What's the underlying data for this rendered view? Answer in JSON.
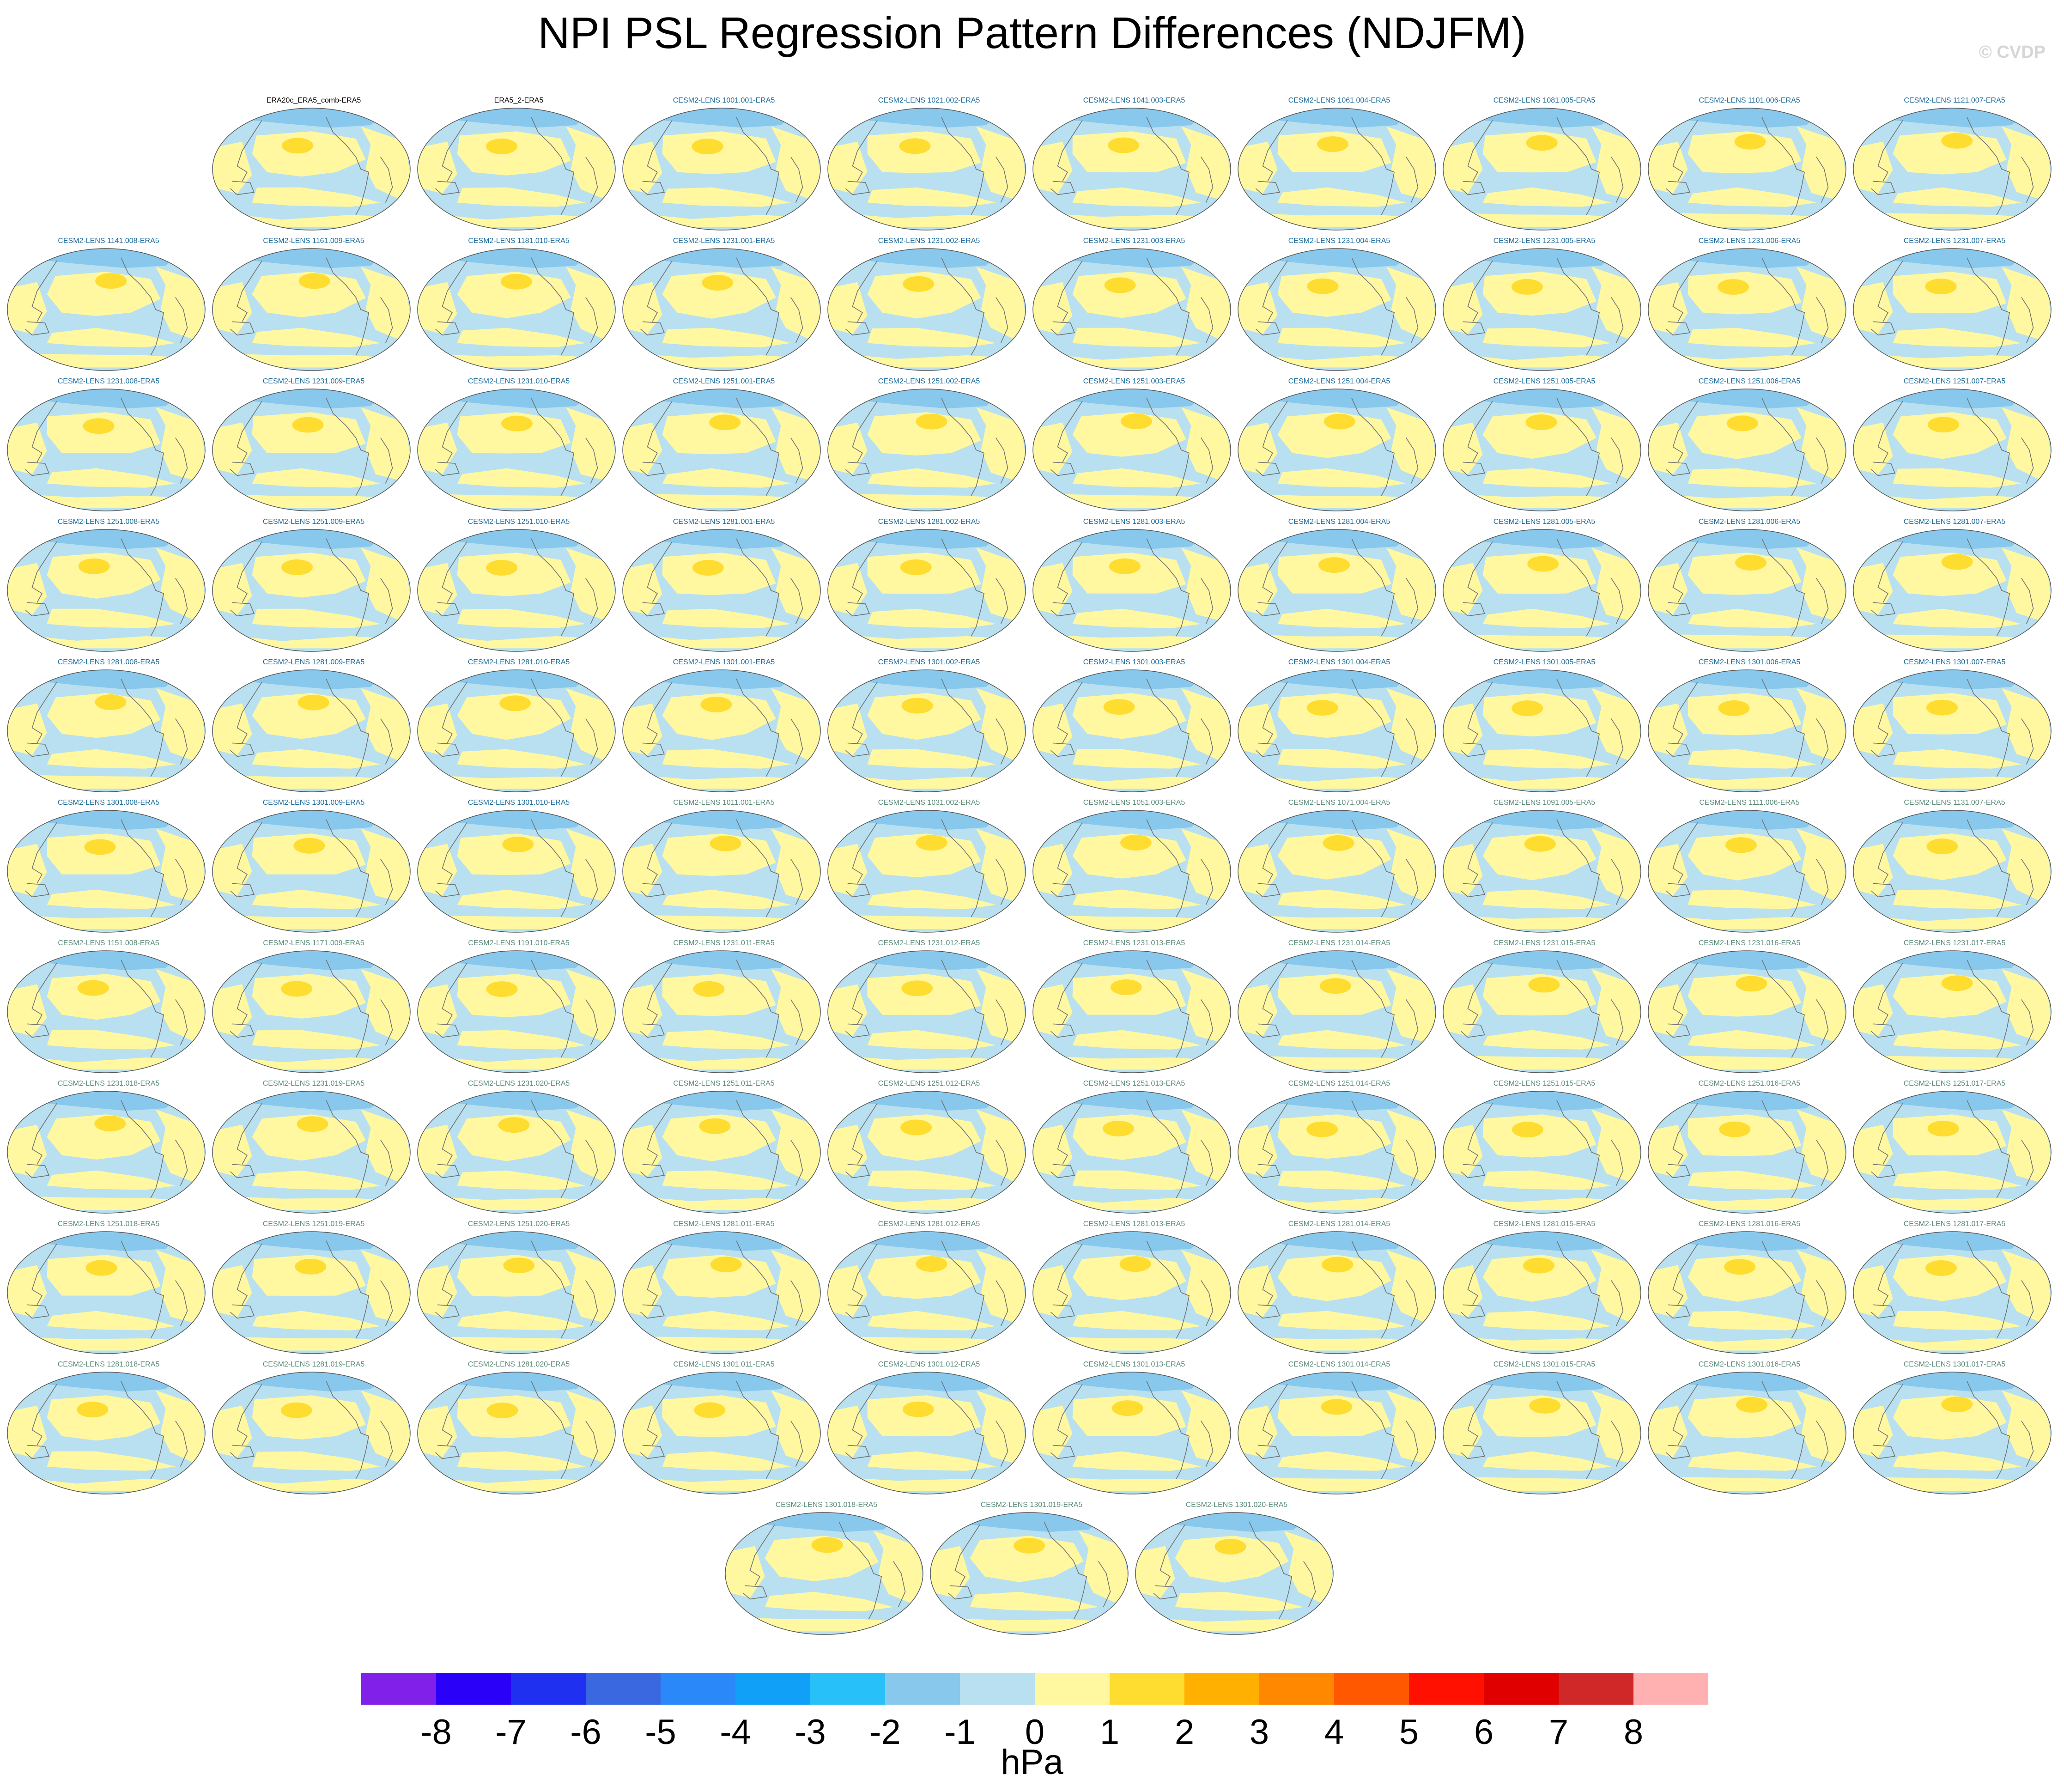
{
  "title": "NPI PSL Regression Pattern Differences (NDJFM)",
  "watermark": "© CVDP",
  "chart_data": {
    "type": "heatmap",
    "variable": "PSL",
    "units": "hPa",
    "colorbar": {
      "ticks": [
        "-8",
        "-7",
        "-6",
        "-5",
        "-4",
        "-3",
        "-2",
        "-1",
        "0",
        "1",
        "2",
        "3",
        "4",
        "5",
        "6",
        "7",
        "8"
      ],
      "colors": [
        "#8020e8",
        "#2a00f8",
        "#2030f0",
        "#3a68e0",
        "#2a88f8",
        "#10a0f8",
        "#28c0f8",
        "#88c8ec",
        "#b8e0f0",
        "#fff8a0",
        "#ffdc30",
        "#ffb000",
        "#ff8800",
        "#ff5800",
        "#ff1000",
        "#e00000",
        "#d02828",
        "#ffb0b0"
      ]
    },
    "panel_rows": [
      [
        "ERA20c_ERA5_comb-ERA5",
        "ERA5_2-ERA5",
        "CESM2-LENS 1001.001-ERA5",
        "CESM2-LENS 1021.002-ERA5",
        "CESM2-LENS 1041.003-ERA5",
        "CESM2-LENS 1061.004-ERA5",
        "CESM2-LENS 1081.005-ERA5",
        "CESM2-LENS 1101.006-ERA5",
        "CESM2-LENS 1121.007-ERA5"
      ],
      [
        "CESM2-LENS 1141.008-ERA5",
        "CESM2-LENS 1161.009-ERA5",
        "CESM2-LENS 1181.010-ERA5",
        "CESM2-LENS 1231.001-ERA5",
        "CESM2-LENS 1231.002-ERA5",
        "CESM2-LENS 1231.003-ERA5",
        "CESM2-LENS 1231.004-ERA5",
        "CESM2-LENS 1231.005-ERA5",
        "CESM2-LENS 1231.006-ERA5",
        "CESM2-LENS 1231.007-ERA5"
      ],
      [
        "CESM2-LENS 1231.008-ERA5",
        "CESM2-LENS 1231.009-ERA5",
        "CESM2-LENS 1231.010-ERA5",
        "CESM2-LENS 1251.001-ERA5",
        "CESM2-LENS 1251.002-ERA5",
        "CESM2-LENS 1251.003-ERA5",
        "CESM2-LENS 1251.004-ERA5",
        "CESM2-LENS 1251.005-ERA5",
        "CESM2-LENS 1251.006-ERA5",
        "CESM2-LENS 1251.007-ERA5"
      ],
      [
        "CESM2-LENS 1251.008-ERA5",
        "CESM2-LENS 1251.009-ERA5",
        "CESM2-LENS 1251.010-ERA5",
        "CESM2-LENS 1281.001-ERA5",
        "CESM2-LENS 1281.002-ERA5",
        "CESM2-LENS 1281.003-ERA5",
        "CESM2-LENS 1281.004-ERA5",
        "CESM2-LENS 1281.005-ERA5",
        "CESM2-LENS 1281.006-ERA5",
        "CESM2-LENS 1281.007-ERA5"
      ],
      [
        "CESM2-LENS 1281.008-ERA5",
        "CESM2-LENS 1281.009-ERA5",
        "CESM2-LENS 1281.010-ERA5",
        "CESM2-LENS 1301.001-ERA5",
        "CESM2-LENS 1301.002-ERA5",
        "CESM2-LENS 1301.003-ERA5",
        "CESM2-LENS 1301.004-ERA5",
        "CESM2-LENS 1301.005-ERA5",
        "CESM2-LENS 1301.006-ERA5",
        "CESM2-LENS 1301.007-ERA5"
      ],
      [
        "CESM2-LENS 1301.008-ERA5",
        "CESM2-LENS 1301.009-ERA5",
        "CESM2-LENS 1301.010-ERA5",
        "CESM2-LENS 1011.001-ERA5",
        "CESM2-LENS 1031.002-ERA5",
        "CESM2-LENS 1051.003-ERA5",
        "CESM2-LENS 1071.004-ERA5",
        "CESM2-LENS 1091.005-ERA5",
        "CESM2-LENS 1111.006-ERA5",
        "CESM2-LENS 1131.007-ERA5"
      ],
      [
        "CESM2-LENS 1151.008-ERA5",
        "CESM2-LENS 1171.009-ERA5",
        "CESM2-LENS 1191.010-ERA5",
        "CESM2-LENS 1231.011-ERA5",
        "CESM2-LENS 1231.012-ERA5",
        "CESM2-LENS 1231.013-ERA5",
        "CESM2-LENS 1231.014-ERA5",
        "CESM2-LENS 1231.015-ERA5",
        "CESM2-LENS 1231.016-ERA5",
        "CESM2-LENS 1231.017-ERA5"
      ],
      [
        "CESM2-LENS 1231.018-ERA5",
        "CESM2-LENS 1231.019-ERA5",
        "CESM2-LENS 1231.020-ERA5",
        "CESM2-LENS 1251.011-ERA5",
        "CESM2-LENS 1251.012-ERA5",
        "CESM2-LENS 1251.013-ERA5",
        "CESM2-LENS 1251.014-ERA5",
        "CESM2-LENS 1251.015-ERA5",
        "CESM2-LENS 1251.016-ERA5",
        "CESM2-LENS 1251.017-ERA5"
      ],
      [
        "CESM2-LENS 1251.018-ERA5",
        "CESM2-LENS 1251.019-ERA5",
        "CESM2-LENS 1251.020-ERA5",
        "CESM2-LENS 1281.011-ERA5",
        "CESM2-LENS 1281.012-ERA5",
        "CESM2-LENS 1281.013-ERA5",
        "CESM2-LENS 1281.014-ERA5",
        "CESM2-LENS 1281.015-ERA5",
        "CESM2-LENS 1281.016-ERA5",
        "CESM2-LENS 1281.017-ERA5"
      ],
      [
        "CESM2-LENS 1281.018-ERA5",
        "CESM2-LENS 1281.019-ERA5",
        "CESM2-LENS 1281.020-ERA5",
        "CESM2-LENS 1301.011-ERA5",
        "CESM2-LENS 1301.012-ERA5",
        "CESM2-LENS 1301.013-ERA5",
        "CESM2-LENS 1301.014-ERA5",
        "CESM2-LENS 1301.015-ERA5",
        "CESM2-LENS 1301.016-ERA5",
        "CESM2-LENS 1301.017-ERA5"
      ],
      [
        "CESM2-LENS 1301.018-ERA5",
        "CESM2-LENS 1301.019-ERA5",
        "CESM2-LENS 1301.020-ERA5"
      ]
    ],
    "title_colors": {
      "observations": "#000000",
      "ensemble_a": "#1a6a9a",
      "ensemble_b": "#5a8a78"
    }
  }
}
